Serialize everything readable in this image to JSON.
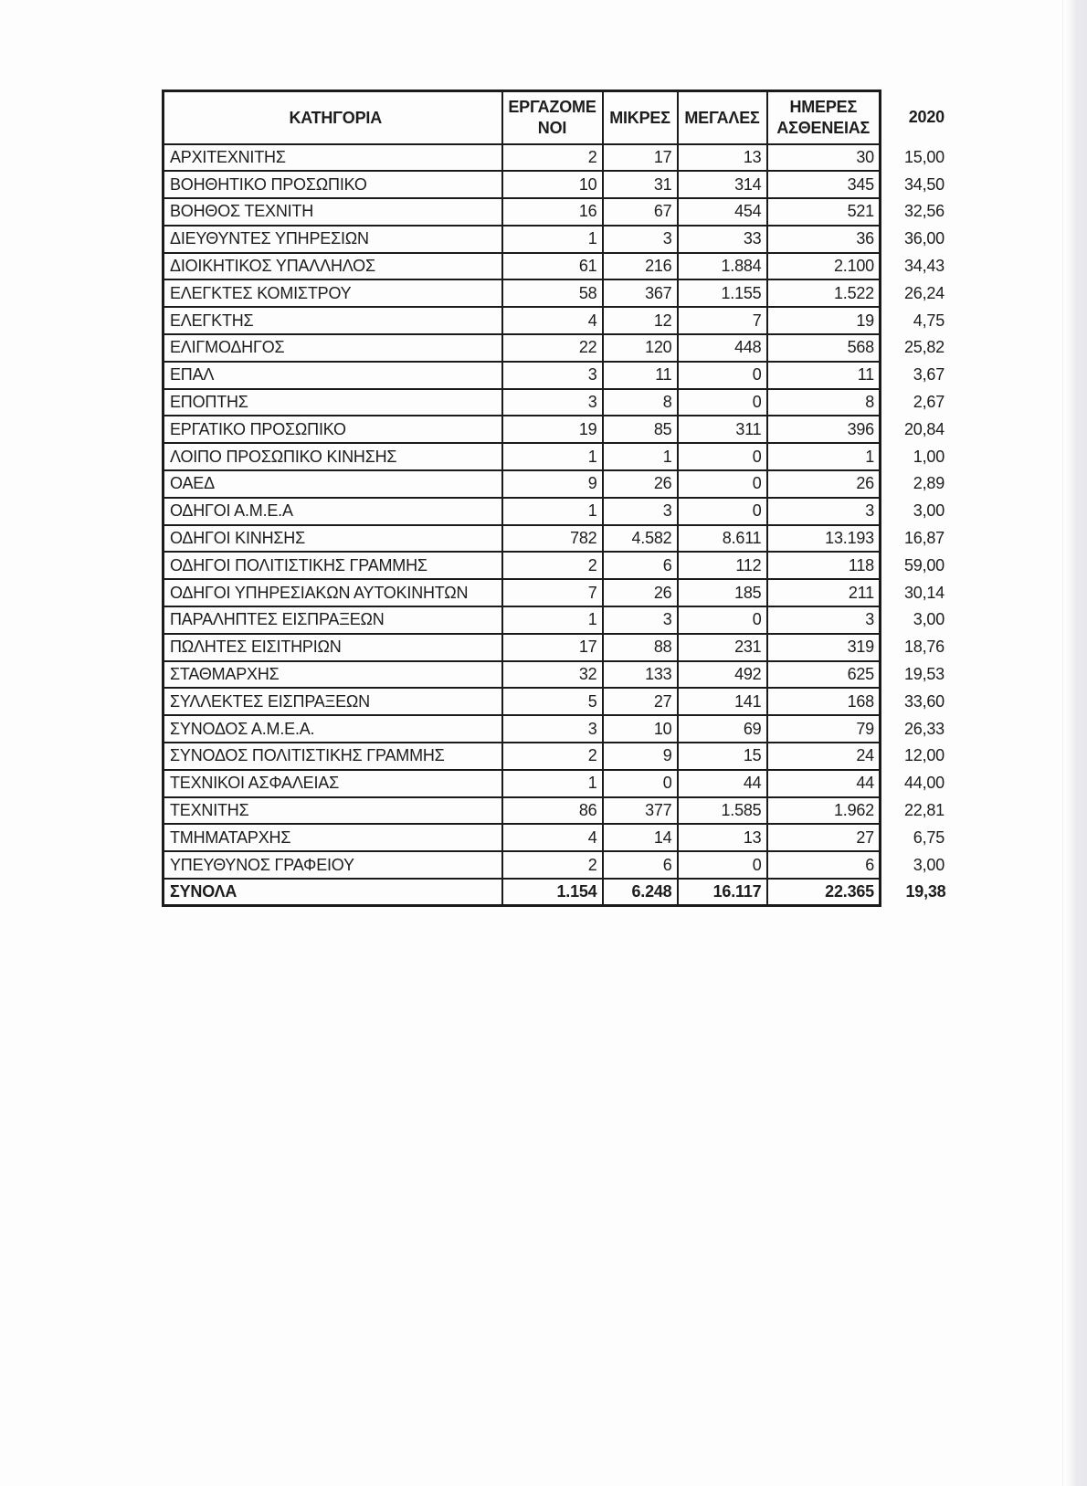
{
  "document": {
    "table": {
      "headers": {
        "category": "ΚΑΤΗΓΟΡΙΑ",
        "employees": "ΕΡΓΑΖΟΜΕ\nΝΟΙ",
        "small": "ΜΙΚΡΕΣ",
        "large": "ΜΕΓΑΛΕΣ",
        "sick_days": "ΗΜΕΡΕΣ\nΑΣΘΕΝΕΙΑΣ",
        "year": "2020"
      },
      "rows": [
        [
          "ΑΡΧΙΤΕΧΝΙΤΗΣ",
          "2",
          "17",
          "13",
          "30",
          "15,00"
        ],
        [
          "ΒΟΗΘΗΤΙΚΟ ΠΡΟΣΩΠΙΚΟ",
          "10",
          "31",
          "314",
          "345",
          "34,50"
        ],
        [
          "ΒΟΗΘΟΣ ΤΕΧΝΙΤΗ",
          "16",
          "67",
          "454",
          "521",
          "32,56"
        ],
        [
          "ΔΙΕΥΘΥΝΤΕΣ ΥΠΗΡΕΣΙΩΝ",
          "1",
          "3",
          "33",
          "36",
          "36,00"
        ],
        [
          "ΔΙΟΙΚΗΤΙΚΟΣ ΥΠΑΛΛΗΛΟΣ",
          "61",
          "216",
          "1.884",
          "2.100",
          "34,43"
        ],
        [
          "ΕΛΕΓΚΤΕΣ ΚΟΜΙΣΤΡΟΥ",
          "58",
          "367",
          "1.155",
          "1.522",
          "26,24"
        ],
        [
          "ΕΛΕΓΚΤΗΣ",
          "4",
          "12",
          "7",
          "19",
          "4,75"
        ],
        [
          "ΕΛΙΓΜΟΔΗΓΟΣ",
          "22",
          "120",
          "448",
          "568",
          "25,82"
        ],
        [
          "ΕΠΑΛ",
          "3",
          "11",
          "0",
          "11",
          "3,67"
        ],
        [
          "ΕΠΟΠΤΗΣ",
          "3",
          "8",
          "0",
          "8",
          "2,67"
        ],
        [
          "ΕΡΓΑΤΙΚΟ ΠΡΟΣΩΠΙΚΟ",
          "19",
          "85",
          "311",
          "396",
          "20,84"
        ],
        [
          "ΛΟΙΠΟ ΠΡΟΣΩΠΙΚΟ ΚΙΝΗΣΗΣ",
          "1",
          "1",
          "0",
          "1",
          "1,00"
        ],
        [
          "ΟΑΕΔ",
          "9",
          "26",
          "0",
          "26",
          "2,89"
        ],
        [
          "ΟΔΗΓΟΙ Α.Μ.Ε.Α",
          "1",
          "3",
          "0",
          "3",
          "3,00"
        ],
        [
          "ΟΔΗΓΟΙ ΚΙΝΗΣΗΣ",
          "782",
          "4.582",
          "8.611",
          "13.193",
          "16,87"
        ],
        [
          "ΟΔΗΓΟΙ ΠΟΛΙΤΙΣΤΙΚΗΣ ΓΡΑΜΜΗΣ",
          "2",
          "6",
          "112",
          "118",
          "59,00"
        ],
        [
          "ΟΔΗΓΟΙ ΥΠΗΡΕΣΙΑΚΩΝ ΑΥΤΟΚΙΝΗΤΩΝ",
          "7",
          "26",
          "185",
          "211",
          "30,14"
        ],
        [
          "ΠΑΡΑΛΗΠΤΕΣ ΕΙΣΠΡΑΞΕΩΝ",
          "1",
          "3",
          "0",
          "3",
          "3,00"
        ],
        [
          "ΠΩΛΗΤΕΣ ΕΙΣΙΤΗΡΙΩΝ",
          "17",
          "88",
          "231",
          "319",
          "18,76"
        ],
        [
          "ΣΤΑΘΜΑΡΧΗΣ",
          "32",
          "133",
          "492",
          "625",
          "19,53"
        ],
        [
          "ΣΥΛΛΕΚΤΕΣ ΕΙΣΠΡΑΞΕΩΝ",
          "5",
          "27",
          "141",
          "168",
          "33,60"
        ],
        [
          "ΣΥΝΟΔΟΣ Α.Μ.Ε.Α.",
          "3",
          "10",
          "69",
          "79",
          "26,33"
        ],
        [
          "ΣΥΝΟΔΟΣ ΠΟΛΙΤΙΣΤΙΚΗΣ ΓΡΑΜΜΗΣ",
          "2",
          "9",
          "15",
          "24",
          "12,00"
        ],
        [
          "ΤΕΧΝΙΚΟΙ ΑΣΦΑΛΕΙΑΣ",
          "1",
          "0",
          "44",
          "44",
          "44,00"
        ],
        [
          "ΤΕΧΝΙΤΗΣ",
          "86",
          "377",
          "1.585",
          "1.962",
          "22,81"
        ],
        [
          "ΤΜΗΜΑΤΑΡΧΗΣ",
          "4",
          "14",
          "13",
          "27",
          "6,75"
        ],
        [
          "ΥΠΕΥΘΥΝΟΣ ΓΡΑΦΕΙΟΥ",
          "2",
          "6",
          "0",
          "6",
          "3,00"
        ]
      ],
      "totals": [
        "ΣΥΝΟΛΑ",
        "1.154",
        "6.248",
        "16.117",
        "22.365",
        "19,38"
      ]
    },
    "colors": {
      "border": "#1b1b1b",
      "text": "#1d1d1f",
      "page_background": "#fdfdfe",
      "page_edge_strip": "#e8e8ec"
    }
  }
}
